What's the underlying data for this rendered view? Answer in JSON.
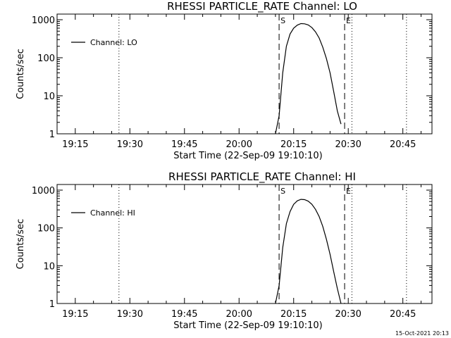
{
  "footer": {
    "timestamp": "15-Oct-2021 20:13"
  },
  "chart_data": [
    {
      "type": "line",
      "title": "RHESSI PARTICLE_RATE Channel: LO",
      "xlabel": "Start Time (22-Sep-09 19:10:10)",
      "ylabel": "Counts/sec",
      "yscale": "log",
      "ylim": [
        1,
        1000
      ],
      "xlim": [
        "19:10",
        "20:53"
      ],
      "x_ticks": [
        "19:15",
        "19:30",
        "19:45",
        "20:00",
        "20:15",
        "20:30",
        "20:45"
      ],
      "y_ticks": [
        "1",
        "10",
        "100",
        "1000"
      ],
      "legend": {
        "entries": [
          "Channel: LO"
        ],
        "position": "top-left"
      },
      "grid": false,
      "dotted_markers": [
        "19:27",
        "20:31",
        "20:46"
      ],
      "dashed_markers": [
        {
          "x": "20:11",
          "label": "S"
        },
        {
          "x": "20:29",
          "label": "E"
        }
      ],
      "series": [
        {
          "name": "Channel: LO",
          "x": [
            "20:10",
            "20:11",
            "20:12",
            "20:13",
            "20:14",
            "20:15",
            "20:16",
            "20:17",
            "20:18",
            "20:19",
            "20:20",
            "20:21",
            "20:22",
            "20:23",
            "20:24",
            "20:25",
            "20:26",
            "20:27",
            "20:28"
          ],
          "values": [
            1,
            3,
            40,
            200,
            420,
            600,
            720,
            790,
            780,
            730,
            620,
            480,
            330,
            190,
            95,
            40,
            13,
            4,
            1.8
          ]
        }
      ]
    },
    {
      "type": "line",
      "title": "RHESSI PARTICLE_RATE Channel: HI",
      "xlabel": "Start Time (22-Sep-09 19:10:10)",
      "ylabel": "Counts/sec",
      "yscale": "log",
      "ylim": [
        1,
        1000
      ],
      "xlim": [
        "19:10",
        "20:53"
      ],
      "x_ticks": [
        "19:15",
        "19:30",
        "19:45",
        "20:00",
        "20:15",
        "20:30",
        "20:45"
      ],
      "y_ticks": [
        "1",
        "10",
        "100",
        "1000"
      ],
      "legend": {
        "entries": [
          "Channel: HI"
        ],
        "position": "top-left"
      },
      "grid": false,
      "dotted_markers": [
        "19:27",
        "20:31",
        "20:46"
      ],
      "dashed_markers": [
        {
          "x": "20:11",
          "label": "S"
        },
        {
          "x": "20:29",
          "label": "E"
        }
      ],
      "series": [
        {
          "name": "Channel: HI",
          "x": [
            "20:10",
            "20:11",
            "20:12",
            "20:13",
            "20:14",
            "20:15",
            "20:16",
            "20:17",
            "20:18",
            "20:19",
            "20:20",
            "20:21",
            "20:22",
            "20:23",
            "20:24",
            "20:25",
            "20:26",
            "20:27",
            "20:28"
          ],
          "values": [
            1,
            3,
            30,
            130,
            270,
            420,
            520,
            570,
            560,
            510,
            420,
            310,
            200,
            110,
            50,
            20,
            7,
            2.5,
            1
          ]
        }
      ]
    }
  ]
}
